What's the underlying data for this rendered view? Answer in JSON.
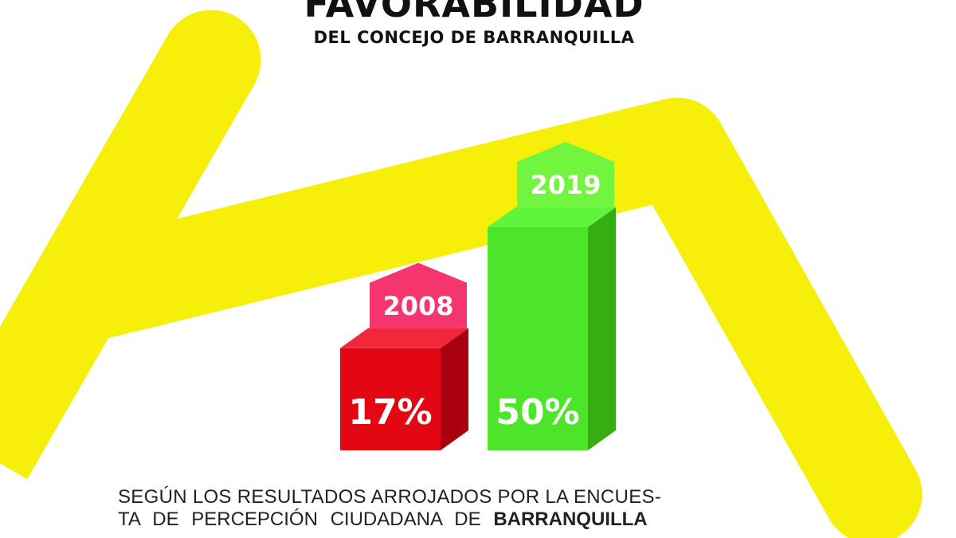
{
  "title": "FAVORABILIDAD",
  "subtitle": "DEL CONCEJO DE BARRANQUILLA",
  "body": {
    "line1": "SEGÚN LOS RESULTADOS ARROJADOS POR LA ENCUES-",
    "line2_prefix": "TA DE PERCEPCIÓN CIUDADANA  DE ",
    "line2_bold": "BARRANQUILLA"
  },
  "colors": {
    "background_shape": "#f5ef0a",
    "bar_2008": "#e30613",
    "label_2008": "#f5366e",
    "bar_2019": "#4ce52a",
    "label_2019": "#72f53e"
  },
  "chart_data": {
    "type": "bar",
    "categories": [
      "2008",
      "2019"
    ],
    "values": [
      17,
      50
    ],
    "value_labels": [
      "17%",
      "50%"
    ],
    "unit": "%"
  }
}
